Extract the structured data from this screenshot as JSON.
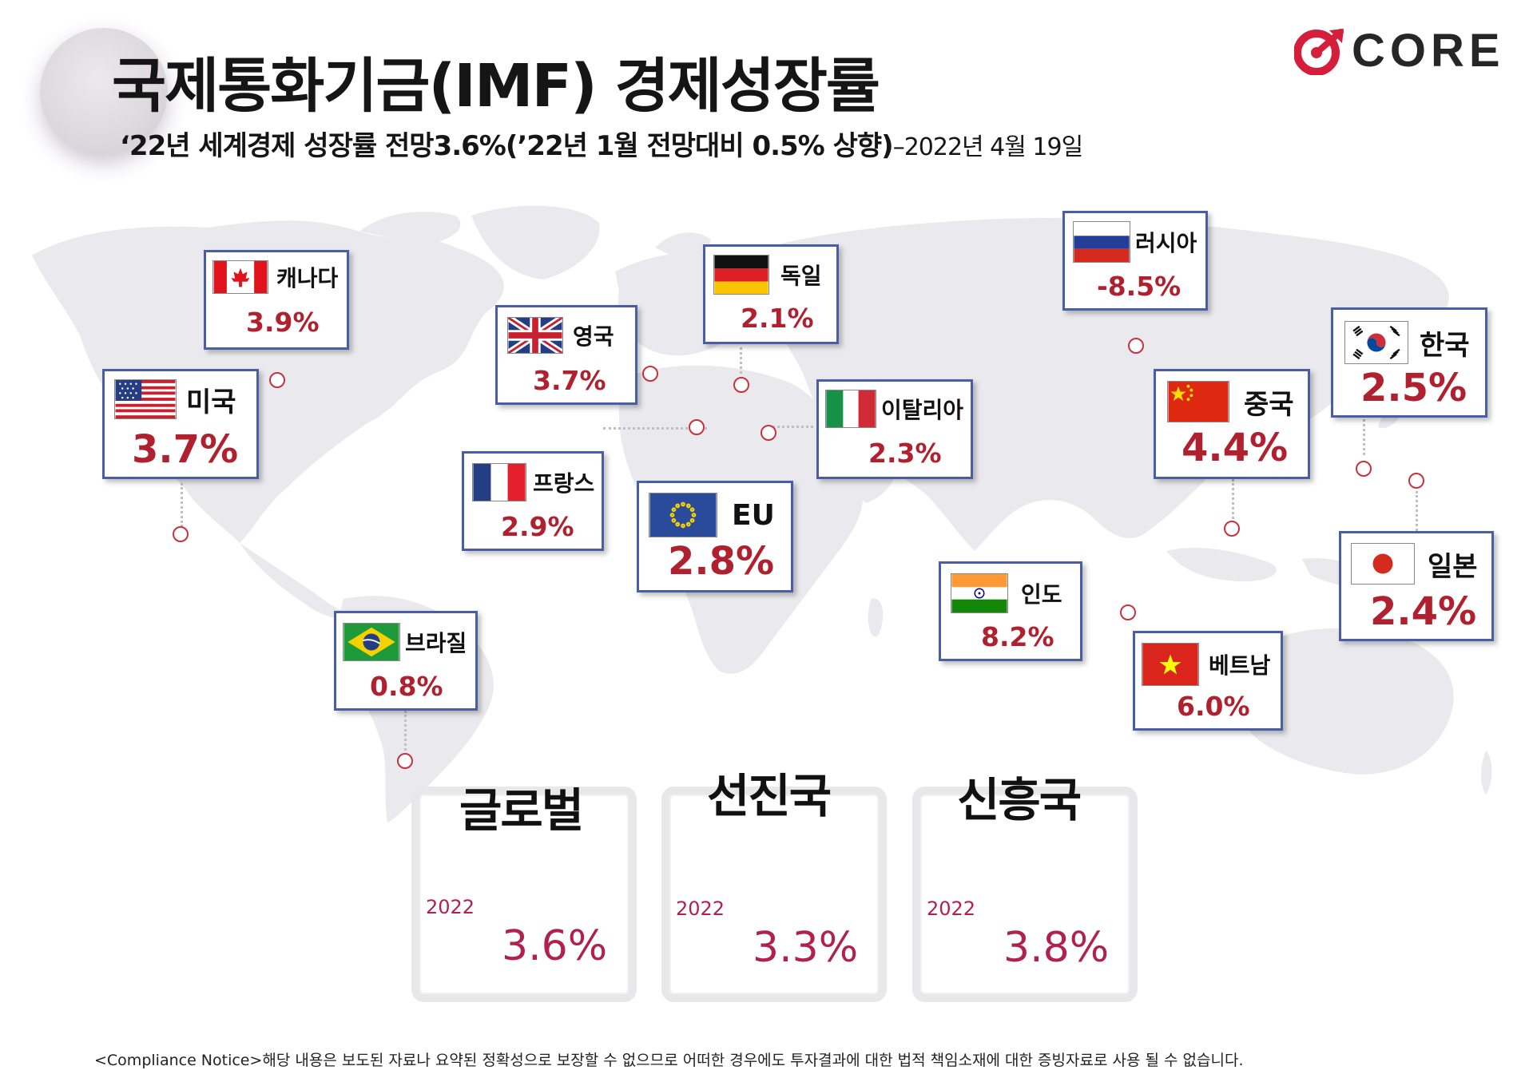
{
  "header": {
    "title": "국제통화기금(IMF) 경제성장률",
    "subtitle": "‘22년 세계경제 성장률 전망3.6%(’22년 1월 전망대비 0.5% 상향)",
    "date": "–2022년 4월 19일"
  },
  "logo": {
    "text": "CORE",
    "icon": "core-logo-icon"
  },
  "countries": {
    "canada": {
      "name": "캐나다",
      "value": "3.9%",
      "icon": "canada-flag-icon"
    },
    "usa": {
      "name": "미국",
      "value": "3.7%",
      "icon": "usa-flag-icon"
    },
    "uk": {
      "name": "영국",
      "value": "3.7%",
      "icon": "uk-flag-icon"
    },
    "germany": {
      "name": "독일",
      "value": "2.1%",
      "icon": "germany-flag-icon"
    },
    "italy": {
      "name": "이탈리아",
      "value": "2.3%",
      "icon": "italy-flag-icon"
    },
    "france": {
      "name": "프랑스",
      "value": "2.9%",
      "icon": "france-flag-icon"
    },
    "eu": {
      "name": "EU",
      "value": "2.8%",
      "icon": "eu-flag-icon"
    },
    "brazil": {
      "name": "브라질",
      "value": "0.8%",
      "icon": "brazil-flag-icon"
    },
    "russia": {
      "name": "러시아",
      "value": "-8.5%",
      "icon": "russia-flag-icon"
    },
    "china": {
      "name": "중국",
      "value": "4.4%",
      "icon": "china-flag-icon"
    },
    "korea": {
      "name": "한국",
      "value": "2.5%",
      "icon": "korea-flag-icon"
    },
    "india": {
      "name": "인도",
      "value": "8.2%",
      "icon": "india-flag-icon"
    },
    "vietnam": {
      "name": "베트남",
      "value": "6.0%",
      "icon": "vietnam-flag-icon"
    },
    "japan": {
      "name": "일본",
      "value": "2.4%",
      "icon": "japan-flag-icon"
    }
  },
  "summary": [
    {
      "title": "글로벌",
      "year": "2022",
      "value": "3.6%"
    },
    {
      "title": "선진국",
      "year": "2022",
      "value": "3.3%"
    },
    {
      "title": "신흥국",
      "year": "2022",
      "value": "3.8%"
    }
  ],
  "notice": "<Compliance Notice>해당 내용은 보도된 자료나 요약된 정확성으로 보장할 수 없으므로 어떠한 경우에도 투자결과에 대한 법적 책임소재에 대한 증빙자료로 사용 될 수 없습니다.",
  "colors": {
    "accent": "#b0212f",
    "border": "#4a5ea6",
    "summary_accent": "#b0214d",
    "logo_red": "#d41e3c"
  }
}
